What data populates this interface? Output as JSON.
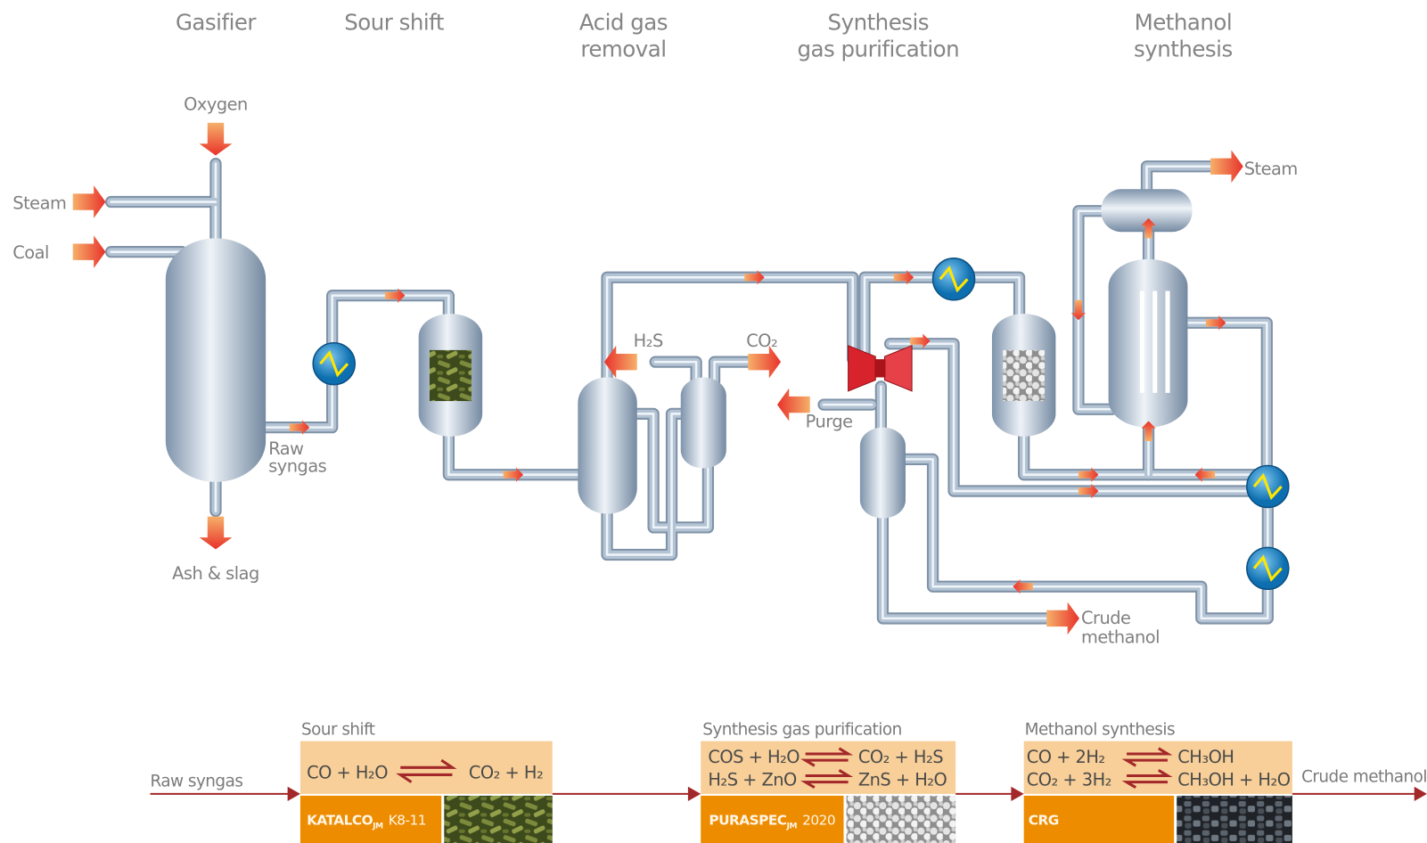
{
  "stages": [
    {
      "lines": [
        "Gasifier"
      ]
    },
    {
      "lines": [
        "Sour shift"
      ]
    },
    {
      "lines": [
        "Acid gas",
        "removal"
      ]
    },
    {
      "lines": [
        "Synthesis",
        "gas purification"
      ]
    },
    {
      "lines": [
        "Methanol",
        "synthesis"
      ]
    }
  ],
  "streams": {
    "oxygen": "Oxygen",
    "steam_in": "Steam",
    "coal": "Coal",
    "raw_syngas": [
      "Raw",
      "syngas"
    ],
    "ash": "Ash & slag",
    "h2s": "H₂S",
    "co2": "CO₂",
    "purge": "Purge",
    "steam_out": "Steam",
    "crude_methanol": [
      "Crude",
      "methanol"
    ]
  },
  "summary": {
    "inlet": "Raw syngas",
    "outlet": "Crude methanol",
    "steps": [
      {
        "title": "Sour shift",
        "reactions": [
          [
            "CO + H₂O",
            "CO₂ + H₂"
          ]
        ],
        "catalyst": {
          "name": "KATALCO",
          "sub": "JM",
          "grade": "K8-11"
        }
      },
      {
        "title": "Synthesis gas purification",
        "reactions": [
          [
            "COS + H₂O",
            "CO₂ + H₂S"
          ],
          [
            "H₂S + ZnO",
            "ZnS + H₂O"
          ]
        ],
        "catalyst": {
          "name": "PURASPEC",
          "sub": "JM",
          "grade": "2020"
        }
      },
      {
        "title": "Methanol synthesis",
        "reactions": [
          [
            "CO + 2H₂",
            "CH₃OH"
          ],
          [
            "CO₂ + 3H₂",
            "CH₃OH + H₂O"
          ]
        ],
        "catalyst": {
          "name": "CRG"
        }
      }
    ]
  }
}
